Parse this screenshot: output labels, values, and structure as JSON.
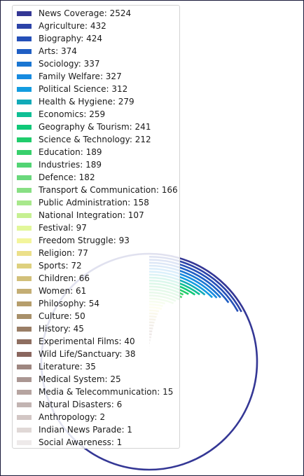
{
  "chart_data": {
    "type": "radial-bar",
    "title": "",
    "legend_position": "top-left",
    "categories": [
      "News Coverage",
      "Agriculture",
      "Biography",
      "Arts",
      "Sociology",
      "Family Welfare",
      "Political Science",
      "Health & Hygiene",
      "Economics",
      "Geography & Tourism",
      "Science & Technology",
      "Education",
      "Industries",
      "Defence",
      "Transport & Communication",
      "Public Administration",
      "National Integration",
      "Festival",
      "Freedom Struggle",
      "Religion",
      "Sports",
      "Children",
      "Women",
      "Philosophy",
      "Culture",
      "History",
      "Experimental Films",
      "Wild Life/Sanctuary",
      "Literature",
      "Medical System",
      "Media & Telecommunication",
      "Natural Disasters",
      "Anthropology",
      "Indian News Parade",
      "Social Awareness"
    ],
    "values": [
      2524,
      432,
      424,
      374,
      337,
      327,
      312,
      279,
      259,
      241,
      212,
      189,
      189,
      182,
      166,
      158,
      107,
      97,
      93,
      77,
      72,
      66,
      61,
      54,
      50,
      45,
      40,
      38,
      35,
      25,
      15,
      6,
      2,
      1,
      1
    ],
    "legend_labels": [
      "News Coverage: 2524",
      "Agriculture: 432",
      "Biography: 424",
      "Arts: 374",
      "Sociology: 337",
      "Family Welfare: 327",
      "Political Science: 312",
      "Health & Hygiene: 279",
      "Economics: 259",
      "Geography & Tourism: 241",
      "Science & Technology: 212",
      "Education: 189",
      "Industries: 189",
      "Defence: 182",
      "Transport & Communication: 166",
      "Public Administration: 158",
      "National Integration: 107",
      "Festival: 97",
      "Freedom Struggle: 93",
      "Religion: 77",
      "Sports: 72",
      "Children: 66",
      "Women: 61",
      "Philosophy: 54",
      "Culture: 50",
      "History: 45",
      "Experimental Films: 40",
      "Wild Life/Sanctuary: 38",
      "Literature: 35",
      "Medical System: 25",
      "Media & Telecommunication: 15",
      "Natural Disasters: 6",
      "Anthropology: 2",
      "Indian News Parade: 1",
      "Social Awareness: 1"
    ],
    "colors": [
      "#343795",
      "#2c43a8",
      "#2550b8",
      "#1f5ec4",
      "#1a76d2",
      "#178be0",
      "#139ce0",
      "#11aab8",
      "#0fbf95",
      "#10c878",
      "#20cc6c",
      "#38d06c",
      "#52d474",
      "#6ad87c",
      "#88df84",
      "#a8e88c",
      "#c6f092",
      "#e2f79a",
      "#f3f59c",
      "#ece08a",
      "#ded07e",
      "#d2c07a",
      "#c4ae74",
      "#b69e6c",
      "#a8906a",
      "#9a7e66",
      "#8e6e60",
      "#8a665e",
      "#9e8680",
      "#aa9692",
      "#b6a4a0",
      "#c2b4b2",
      "#d2c6c4",
      "#e0d8d6",
      "#eeeaea"
    ],
    "angle_range_degrees": [
      0,
      360
    ],
    "start_angle": "top",
    "direction": "clockwise"
  }
}
